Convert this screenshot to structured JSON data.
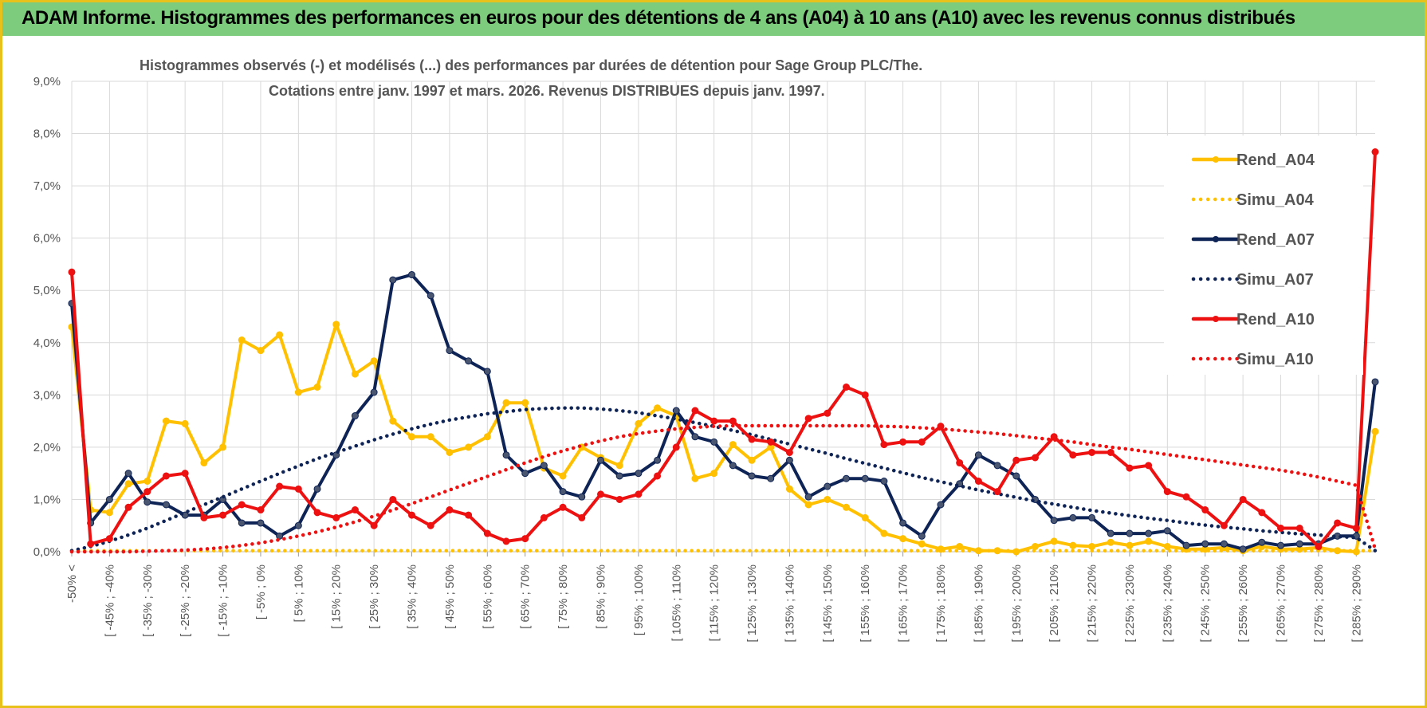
{
  "header": {
    "title": "ADAM Informe. Histogrammes des performances en euros pour des détentions de 4 ans (A04) à 10 ans (A10) avec les revenus connus distribués"
  },
  "chart_data": {
    "type": "line",
    "title_line1": "Histogrammes observés (-) et modélisés (...) des performances par durées de détention pour Sage Group PLC/The.",
    "title_line2": "Cotations entre janv. 1997 et mars. 2026.  Revenus DISTRIBUES depuis janv. 1997.",
    "xlabel": "",
    "ylabel": "",
    "ylim": [
      0,
      9
    ],
    "y_ticks": [
      "0,0%",
      "1,0%",
      "2,0%",
      "3,0%",
      "4,0%",
      "5,0%",
      "6,0%",
      "7,0%",
      "8,0%",
      "9,0%"
    ],
    "grid": true,
    "legend_position": "right",
    "x_labels": [
      "-50% <",
      "[ -45% ; -40%",
      "[ -35% ; -30%",
      "[ -25% ; -20%",
      "[ -15% ; -10%",
      "[ -5% ; 0%",
      "[ 5% ; 10%",
      "[ 15% ; 20%",
      "[ 25% ; 30%",
      "[ 35% ; 40%",
      "[ 45% ; 50%",
      "[ 55% ; 60%",
      "[ 65% ; 70%",
      "[ 75% ; 80%",
      "[ 85% ; 90%",
      "[ 95% ; 100%",
      "[ 105% ; 110%",
      "[ 115% ; 120%",
      "[ 125% ; 130%",
      "[ 135% ; 140%",
      "[ 145% ; 150%",
      "[ 155% ; 160%",
      "[ 165% ; 170%",
      "[ 175% ; 180%",
      "[ 185% ; 190%",
      "[ 195% ; 200%",
      "[ 205% ; 210%",
      "[ 215% ; 220%",
      "[ 225% ; 230%",
      "[ 235% ; 240%",
      "[ 245% ; 250%",
      "[ 255% ; 260%",
      "[ 265% ; 270%",
      "[ 275% ; 280%",
      "[ 285% ; 290%"
    ],
    "series": [
      {
        "name": "Rend_A04",
        "style": "solid",
        "color": "#ffc000",
        "values": [
          4.3,
          0.8,
          0.75,
          1.3,
          1.35,
          2.5,
          2.45,
          1.7,
          2.0,
          4.05,
          3.85,
          4.15,
          3.05,
          3.15,
          4.35,
          3.4,
          3.65,
          2.5,
          2.2,
          2.2,
          1.9,
          2.0,
          2.2,
          2.85,
          2.85,
          1.6,
          1.45,
          2.0,
          1.8,
          1.65,
          2.45,
          2.75,
          2.6,
          1.4,
          1.5,
          2.05,
          1.75,
          2.0,
          1.2,
          0.9,
          1.0,
          0.85,
          0.65,
          0.35,
          0.25,
          0.15,
          0.05,
          0.1,
          0.02,
          0.02,
          0.0,
          0.1,
          0.2,
          0.12,
          0.1,
          0.18,
          0.12,
          0.2,
          0.1,
          0.05,
          0.05,
          0.08,
          0.02,
          0.1,
          0.05,
          0.05,
          0.08,
          0.02,
          0.0,
          2.3
        ]
      },
      {
        "name": "Simu_A04",
        "style": "dotted",
        "color": "#ffc000",
        "values": [
          0.02,
          0.02,
          0.02,
          0.02,
          0.02,
          0.02,
          0.02,
          0.02,
          0.02,
          0.02,
          0.02,
          0.02,
          0.02,
          0.02,
          0.02,
          0.02,
          0.02,
          0.02,
          0.02,
          0.02,
          0.02,
          0.02,
          0.02,
          0.02,
          0.02,
          0.02,
          0.02,
          0.02,
          0.02,
          0.02,
          0.02,
          0.02,
          0.02,
          0.02,
          0.02,
          0.02,
          0.02,
          0.02,
          0.02,
          0.02,
          0.02,
          0.02,
          0.02,
          0.02,
          0.02,
          0.02,
          0.02,
          0.02,
          0.02,
          0.02,
          0.02,
          0.02,
          0.02,
          0.02,
          0.02,
          0.02,
          0.02,
          0.02,
          0.02,
          0.02,
          0.02,
          0.02,
          0.02,
          0.02,
          0.02,
          0.02,
          0.02,
          0.02,
          0.02,
          0.02
        ]
      },
      {
        "name": "Rend_A07",
        "style": "solid",
        "color": "#0f2456",
        "values": [
          4.75,
          0.55,
          1.0,
          1.5,
          0.95,
          0.9,
          0.7,
          0.7,
          1.0,
          0.55,
          0.55,
          0.3,
          0.5,
          1.2,
          1.85,
          2.6,
          3.05,
          5.2,
          5.3,
          4.9,
          3.85,
          3.65,
          3.45,
          1.85,
          1.5,
          1.65,
          1.15,
          1.05,
          1.75,
          1.45,
          1.5,
          1.75,
          2.7,
          2.2,
          2.1,
          1.65,
          1.45,
          1.4,
          1.75,
          1.05,
          1.25,
          1.4,
          1.4,
          1.35,
          0.55,
          0.3,
          0.9,
          1.3,
          1.85,
          1.65,
          1.45,
          1.0,
          0.6,
          0.65,
          0.65,
          0.35,
          0.35,
          0.35,
          0.4,
          0.12,
          0.15,
          0.15,
          0.05,
          0.18,
          0.12,
          0.15,
          0.15,
          0.3,
          0.3,
          3.25
        ]
      },
      {
        "name": "Simu_A07",
        "style": "dotted",
        "color": "#0f2456",
        "values": [
          0.02,
          0.1,
          0.2,
          0.32,
          0.45,
          0.6,
          0.75,
          0.9,
          1.05,
          1.2,
          1.35,
          1.5,
          1.64,
          1.78,
          1.9,
          2.02,
          2.14,
          2.25,
          2.35,
          2.44,
          2.52,
          2.58,
          2.64,
          2.68,
          2.72,
          2.74,
          2.75,
          2.75,
          2.73,
          2.7,
          2.66,
          2.6,
          2.54,
          2.47,
          2.4,
          2.32,
          2.24,
          2.15,
          2.06,
          1.97,
          1.88,
          1.78,
          1.69,
          1.6,
          1.51,
          1.42,
          1.34,
          1.26,
          1.18,
          1.11,
          1.04,
          0.97,
          0.91,
          0.85,
          0.79,
          0.74,
          0.69,
          0.64,
          0.6,
          0.55,
          0.51,
          0.47,
          0.44,
          0.4,
          0.37,
          0.34,
          0.32,
          0.29,
          0.27,
          0.02
        ]
      },
      {
        "name": "Rend_A10",
        "style": "solid",
        "color": "#ee1111",
        "values": [
          5.35,
          0.15,
          0.25,
          0.85,
          1.15,
          1.45,
          1.5,
          0.65,
          0.7,
          0.9,
          0.8,
          1.25,
          1.2,
          0.75,
          0.65,
          0.8,
          0.5,
          1.0,
          0.7,
          0.5,
          0.8,
          0.7,
          0.35,
          0.2,
          0.25,
          0.65,
          0.85,
          0.65,
          1.1,
          1.0,
          1.1,
          1.45,
          2.0,
          2.7,
          2.5,
          2.5,
          2.15,
          2.1,
          1.9,
          2.55,
          2.65,
          3.15,
          3.0,
          2.05,
          2.1,
          2.1,
          2.4,
          1.7,
          1.35,
          1.15,
          1.75,
          1.8,
          2.2,
          1.85,
          1.9,
          1.9,
          1.6,
          1.65,
          1.15,
          1.05,
          0.8,
          0.5,
          1.0,
          0.75,
          0.45,
          0.45,
          0.1,
          0.55,
          0.45,
          7.65
        ]
      },
      {
        "name": "Simu_A10",
        "style": "dotted",
        "color": "#ee1111",
        "values": [
          0.0,
          0.0,
          0.0,
          0.0,
          0.01,
          0.02,
          0.03,
          0.05,
          0.08,
          0.12,
          0.17,
          0.23,
          0.3,
          0.38,
          0.47,
          0.57,
          0.68,
          0.8,
          0.92,
          1.05,
          1.18,
          1.31,
          1.44,
          1.57,
          1.7,
          1.82,
          1.93,
          2.03,
          2.12,
          2.2,
          2.26,
          2.31,
          2.35,
          2.38,
          2.4,
          2.41,
          2.41,
          2.41,
          2.41,
          2.41,
          2.41,
          2.41,
          2.41,
          2.4,
          2.39,
          2.37,
          2.35,
          2.32,
          2.29,
          2.26,
          2.22,
          2.18,
          2.14,
          2.1,
          2.05,
          2.0,
          1.96,
          1.91,
          1.86,
          1.81,
          1.76,
          1.71,
          1.66,
          1.61,
          1.56,
          1.5,
          1.43,
          1.35,
          1.27,
          0.05
        ]
      }
    ]
  }
}
